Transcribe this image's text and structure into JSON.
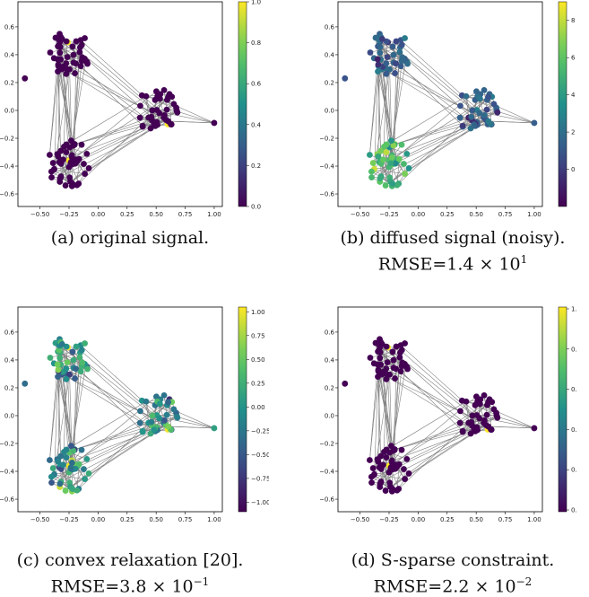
{
  "panels": [
    {
      "id": "a",
      "caption_line1": "(a) original signal.",
      "caption_line2": "",
      "cbar_min": 0.0,
      "cbar_max": 1.0,
      "cbar_ticks": [
        "0.0",
        "0.2",
        "0.4",
        "0.6",
        "0.8",
        "1.0"
      ],
      "mode": "sparse"
    },
    {
      "id": "b",
      "caption_line1": "(b) diffused signal (noisy).",
      "caption_line2_prefix": "RMSE=1.4 × 10",
      "caption_line2_exp": "1",
      "cbar_min": -2,
      "cbar_max": 9,
      "cbar_ticks": [
        "0",
        "2",
        "4",
        "6",
        "8"
      ],
      "mode": "diffused"
    },
    {
      "id": "c",
      "caption_line1": "(c) convex relaxation [20].",
      "caption_line2_prefix": "RMSE=3.8 × 10",
      "caption_line2_exp": "−1",
      "cbar_min": -1.1,
      "cbar_max": 1.05,
      "cbar_ticks": [
        "1.00",
        "0.75",
        "0.50",
        "0.25",
        "0.00",
        "−0.25",
        "−0.50",
        "−0.75",
        "−1.00"
      ],
      "mode": "noisy"
    },
    {
      "id": "d",
      "caption_line1": "(d) S-sparse constraint.",
      "caption_line2_prefix": "RMSE=2.2 × 10",
      "caption_line2_exp": "−2",
      "cbar_min": 0.0,
      "cbar_max": 1.0,
      "cbar_ticks": [
        "1.",
        "0.",
        "0.",
        "0.",
        "0.",
        "0."
      ],
      "mode": "sparse"
    }
  ],
  "x_ticks": [
    "−0.50",
    "−0.25",
    "0.00",
    "0.25",
    "0.50",
    "0.75",
    "1.00"
  ],
  "y_ticks": [
    "0.6",
    "0.4",
    "0.2",
    "0.0",
    "−0.2",
    "−0.4",
    "−0.6"
  ],
  "colors": {
    "edge": "#808080",
    "node_low": "#440154",
    "node_high": "#fde725"
  }
}
